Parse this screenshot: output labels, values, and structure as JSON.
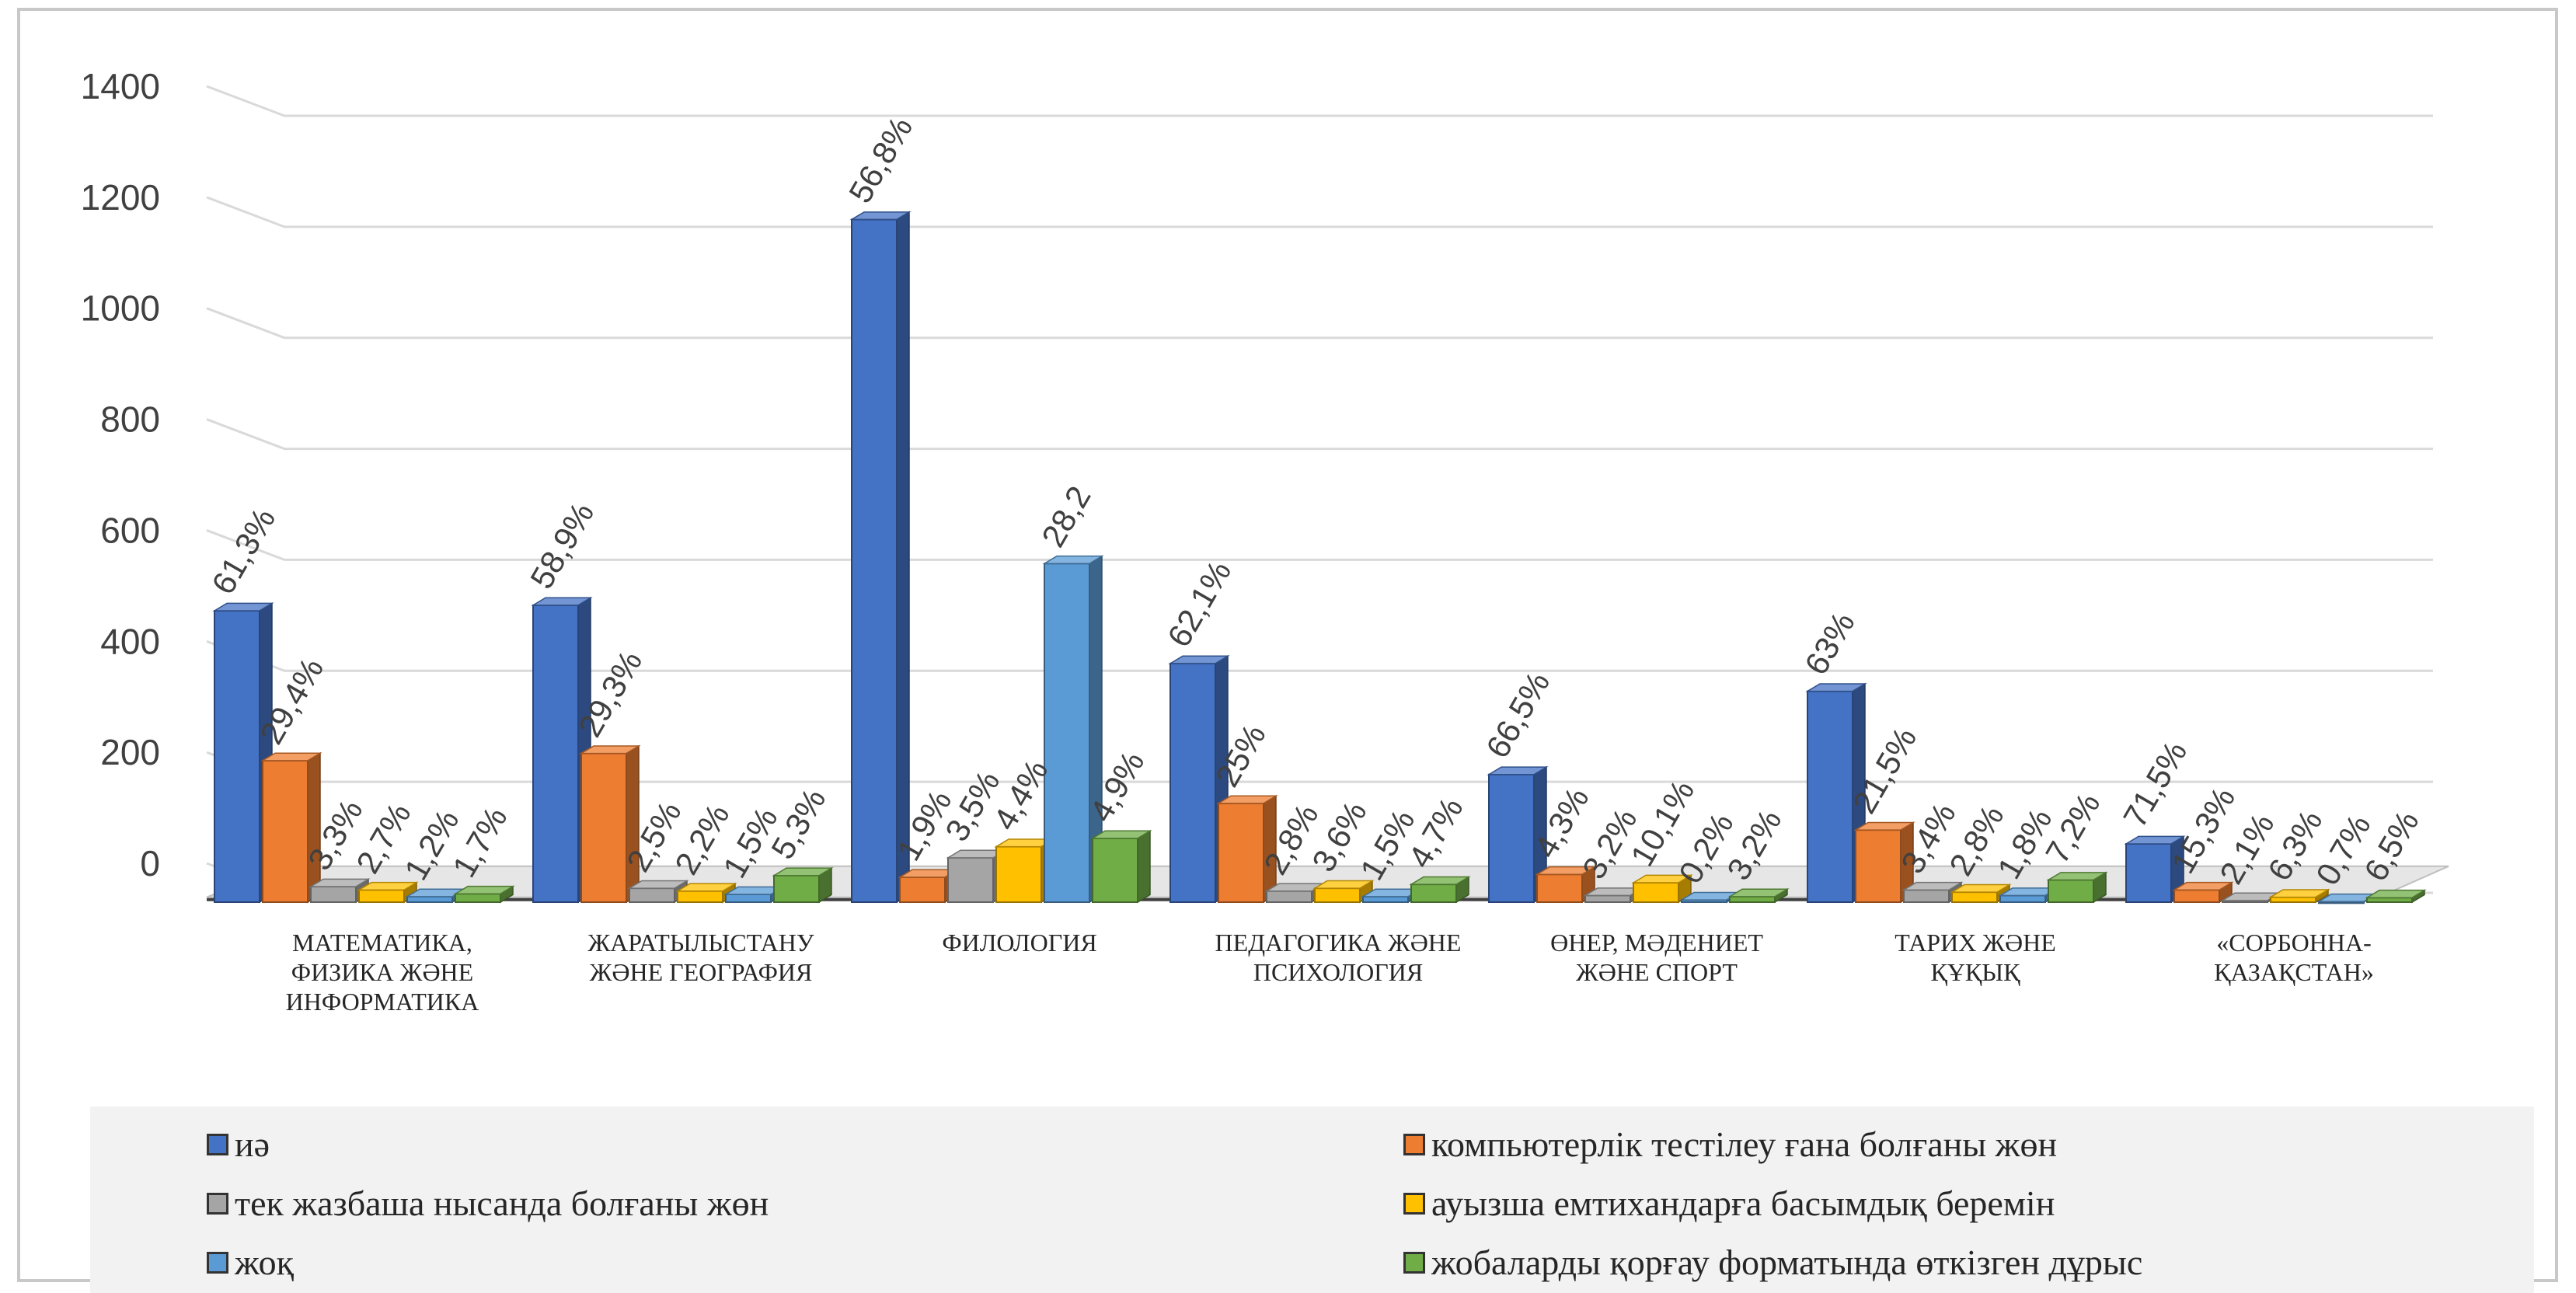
{
  "chart_data": {
    "type": "bar",
    "categories": [
      [
        "МАТЕМАТИКА,",
        "ФИЗИКА ЖӘНЕ",
        "ИНФОРМАТИКА"
      ],
      [
        "ЖАРАТЫЛЫСТАНУ",
        "ЖӘНЕ ГЕОГРАФИЯ"
      ],
      [
        "ФИЛОЛОГИЯ"
      ],
      [
        "ПЕДАГОГИКА ЖӘНЕ",
        "ПСИХОЛОГИЯ"
      ],
      [
        "ӨНЕР, МӘДЕНИЕТ",
        "ЖӘНЕ СПОРТ"
      ],
      [
        "ТАРИХ ЖӘНЕ",
        "ҚҰҚЫҚ"
      ],
      [
        "«СОРБОННА-",
        "ҚАЗАҚСТАН»"
      ]
    ],
    "yticks": [
      "0",
      "200",
      "400",
      "600",
      "800",
      "1000",
      "1200",
      "1400"
    ],
    "ylim": [
      0,
      1400
    ],
    "grid": true,
    "legend_position": "bottom",
    "series": [
      {
        "name": "иә",
        "color": "#4472c4",
        "values": [
          525,
          535,
          1230,
          430,
          230,
          380,
          105
        ],
        "labels": [
          "61,3%",
          "58,9%",
          "56,8%",
          "62,1%",
          "66,5%",
          "63%",
          "71,5%"
        ]
      },
      {
        "name": "компьютерлік тестілеу ғана болғаны жөн",
        "color": "#ed7d31",
        "values": [
          255,
          268,
          45,
          178,
          50,
          130,
          22
        ],
        "labels": [
          "29,4%",
          "29,3%",
          "1,9%",
          "25%",
          "4,3%",
          "21,5%",
          "15,3%"
        ]
      },
      {
        "name": "тек жазбаша нысанда болғаны жөн",
        "color": "#a5a5a5",
        "values": [
          28,
          25,
          80,
          20,
          12,
          22,
          3
        ],
        "labels": [
          "3,3%",
          "2,5%",
          "3,5%",
          "2,8%",
          "3,2%",
          "3,4%",
          "2,1%"
        ]
      },
      {
        "name": "ауызша емтихандарға басымдық беремін",
        "color": "#ffc000",
        "values": [
          22,
          20,
          100,
          25,
          35,
          18,
          9
        ],
        "labels": [
          "2,7%",
          "2,2%",
          "4,4%",
          "3,6%",
          "10,1%",
          "2,8%",
          "6,3%"
        ]
      },
      {
        "name": "жоқ",
        "color": "#5b9bd5",
        "values": [
          10,
          14,
          610,
          10,
          4,
          12,
          1
        ],
        "labels": [
          "1,2%",
          "1,5%",
          "28,2",
          "1,5%",
          "0,2%",
          "1,8%",
          "0,7%"
        ]
      },
      {
        "name": "жобаларды қорғау форматында өткізген дұрыс",
        "color": "#70ad47",
        "values": [
          15,
          48,
          115,
          32,
          10,
          40,
          8
        ],
        "labels": [
          "1,7%",
          "5,3%",
          "4,9%",
          "4,7%",
          "3,2%",
          "7,2%",
          "6,5%"
        ]
      }
    ]
  }
}
